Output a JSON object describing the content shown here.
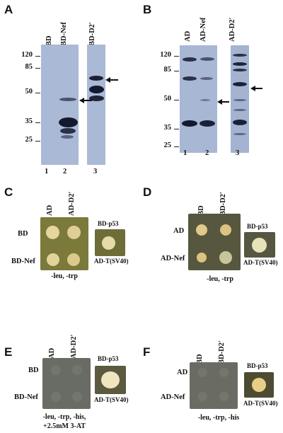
{
  "panels": {
    "A": {
      "letter": "A",
      "lanes": [
        "BD",
        "BD-Nef",
        "BD-D2′"
      ],
      "lane_numbers": [
        "1",
        "2",
        "3"
      ],
      "mw_markers": [
        "120",
        "85",
        "50",
        "35",
        "25"
      ]
    },
    "B": {
      "letter": "B",
      "lanes": [
        "AD",
        "AD-Nef",
        "AD-D2′"
      ],
      "lane_numbers": [
        "1",
        "2",
        "3"
      ],
      "mw_markers": [
        "120",
        "85",
        "50",
        "35",
        "25"
      ]
    },
    "C": {
      "letter": "C",
      "cols": [
        "AD",
        "AD-D2′"
      ],
      "rows": [
        "BD",
        "BD-Nef"
      ],
      "ctrl_top": "BD-p53",
      "ctrl_bottom": "AD-T(SV40)",
      "condition": "-leu, -trp"
    },
    "D": {
      "letter": "D",
      "cols": [
        "BD",
        "BD-D2′"
      ],
      "rows": [
        "AD",
        "AD-Nef"
      ],
      "ctrl_top": "BD-p53",
      "ctrl_bottom": "AD-T(SV40)",
      "condition": "-leu, -trp"
    },
    "E": {
      "letter": "E",
      "cols": [
        "AD",
        "AD-D2′"
      ],
      "rows": [
        "BD",
        "BD-Nef"
      ],
      "ctrl_top": "BD-p53",
      "ctrl_bottom": "AD-T(SV40)",
      "condition_line1": "-leu, -trp, -his,",
      "condition_line2": "+2.5mM 3-AT"
    },
    "F": {
      "letter": "F",
      "cols": [
        "BD",
        "BD-D2′"
      ],
      "rows": [
        "AD",
        "AD-Nef"
      ],
      "ctrl_top": "BD-p53",
      "ctrl_bottom": "AD-T(SV40)",
      "condition": "-leu, -trp, -his"
    }
  },
  "colors": {
    "blot_bg": "#a9b9d6",
    "band": "#141a2e",
    "plate_green": "#7d7c3c",
    "plate_dark": "#55573f",
    "plate_grey": "#6b6e66",
    "colony": "#e2d39a"
  }
}
